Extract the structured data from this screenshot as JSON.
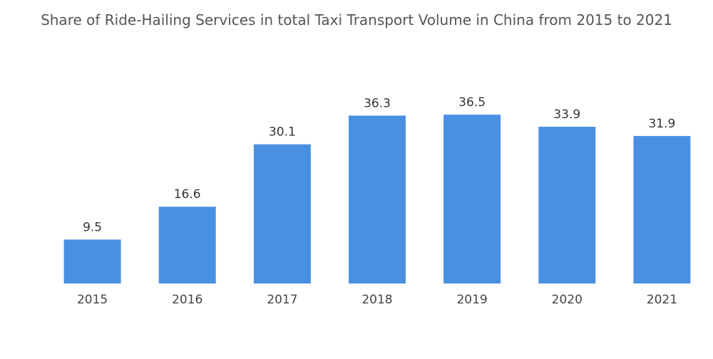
{
  "chart_data": {
    "type": "bar",
    "title": "Share of Ride-Hailing Services in total Taxi Transport Volume in China from 2015 to 2021",
    "categories": [
      "2015",
      "2016",
      "2017",
      "2018",
      "2019",
      "2020",
      "2021"
    ],
    "values": [
      9.5,
      16.6,
      30.1,
      36.3,
      36.5,
      33.9,
      31.9
    ],
    "value_labels": [
      "9.5",
      "16.6",
      "30.1",
      "36.3",
      "36.5",
      "33.9",
      "31.9"
    ],
    "xlabel": "",
    "ylabel": "",
    "ylim": [
      0,
      40
    ],
    "grid": false,
    "legend": "none",
    "bar_color": "#4a90e2"
  }
}
